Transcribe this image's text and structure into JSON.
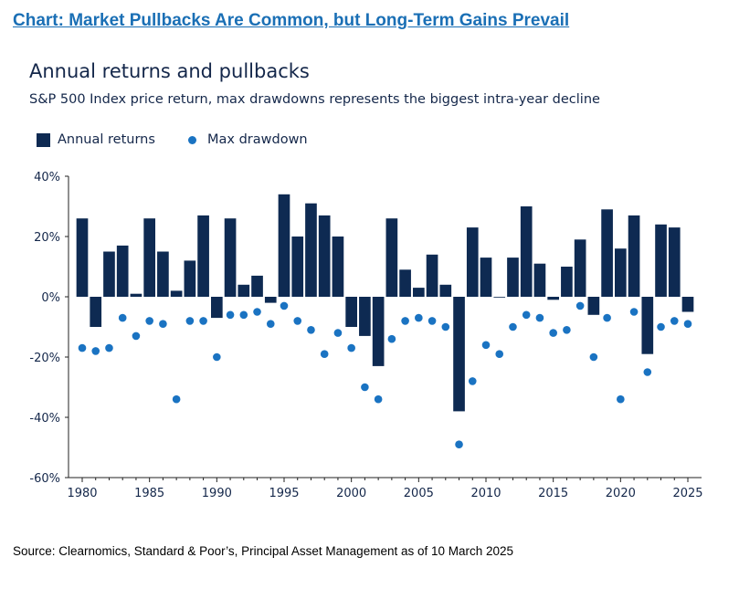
{
  "headline": "Chart: Market Pullbacks Are Common, but Long-Term Gains Prevail",
  "source": "Source: Clearnomics, Standard & Poor’s, Principal Asset Management as of 10 March 2025",
  "colors": {
    "bar": "#0e2a52",
    "dot": "#1a73c2",
    "text": "#14274a",
    "headline": "#1a6fb5"
  },
  "chart_data": {
    "type": "bar",
    "title": "Annual returns and pullbacks",
    "subtitle": "S&P 500 Index price return, max drawdowns represents the biggest intra-year decline",
    "legend": [
      "Annual returns",
      "Max drawdown"
    ],
    "legend_position": "top-left",
    "grid": false,
    "ylim": [
      -60,
      40
    ],
    "yticks": [
      40,
      20,
      0,
      -20,
      -40,
      -60
    ],
    "ytick_labels": [
      "40%",
      "20%",
      "0%",
      "-20%",
      "-40%",
      "-60%"
    ],
    "xticks": [
      1980,
      1985,
      1990,
      1995,
      2000,
      2005,
      2010,
      2015,
      2020,
      2025
    ],
    "x": [
      1980,
      1981,
      1982,
      1983,
      1984,
      1985,
      1986,
      1987,
      1988,
      1989,
      1990,
      1991,
      1992,
      1993,
      1994,
      1995,
      1996,
      1997,
      1998,
      1999,
      2000,
      2001,
      2002,
      2003,
      2004,
      2005,
      2006,
      2007,
      2008,
      2009,
      2010,
      2011,
      2012,
      2013,
      2014,
      2015,
      2016,
      2017,
      2018,
      2019,
      2020,
      2021,
      2022,
      2023,
      2024,
      2025
    ],
    "series": [
      {
        "name": "Annual returns",
        "type": "bar",
        "values": [
          26,
          -10,
          15,
          17,
          1,
          26,
          15,
          2,
          12,
          27,
          -7,
          26,
          4,
          7,
          -2,
          34,
          20,
          31,
          27,
          20,
          -10,
          -13,
          -23,
          26,
          9,
          3,
          14,
          4,
          -38,
          23,
          13,
          0,
          13,
          30,
          11,
          -1,
          10,
          19,
          -6,
          29,
          16,
          27,
          -19,
          24,
          23,
          -5
        ]
      },
      {
        "name": "Max drawdown",
        "type": "scatter",
        "values": [
          -17,
          -18,
          -17,
          -7,
          -13,
          -8,
          -9,
          -34,
          -8,
          -8,
          -20,
          -6,
          -6,
          -5,
          -9,
          -3,
          -8,
          -11,
          -19,
          -12,
          -17,
          -30,
          -34,
          -14,
          -8,
          -7,
          -8,
          -10,
          -49,
          -28,
          -16,
          -19,
          -10,
          -6,
          -7,
          -12,
          -11,
          -3,
          -20,
          -7,
          -34,
          -5,
          -25,
          -10,
          -8,
          -9
        ]
      }
    ]
  }
}
